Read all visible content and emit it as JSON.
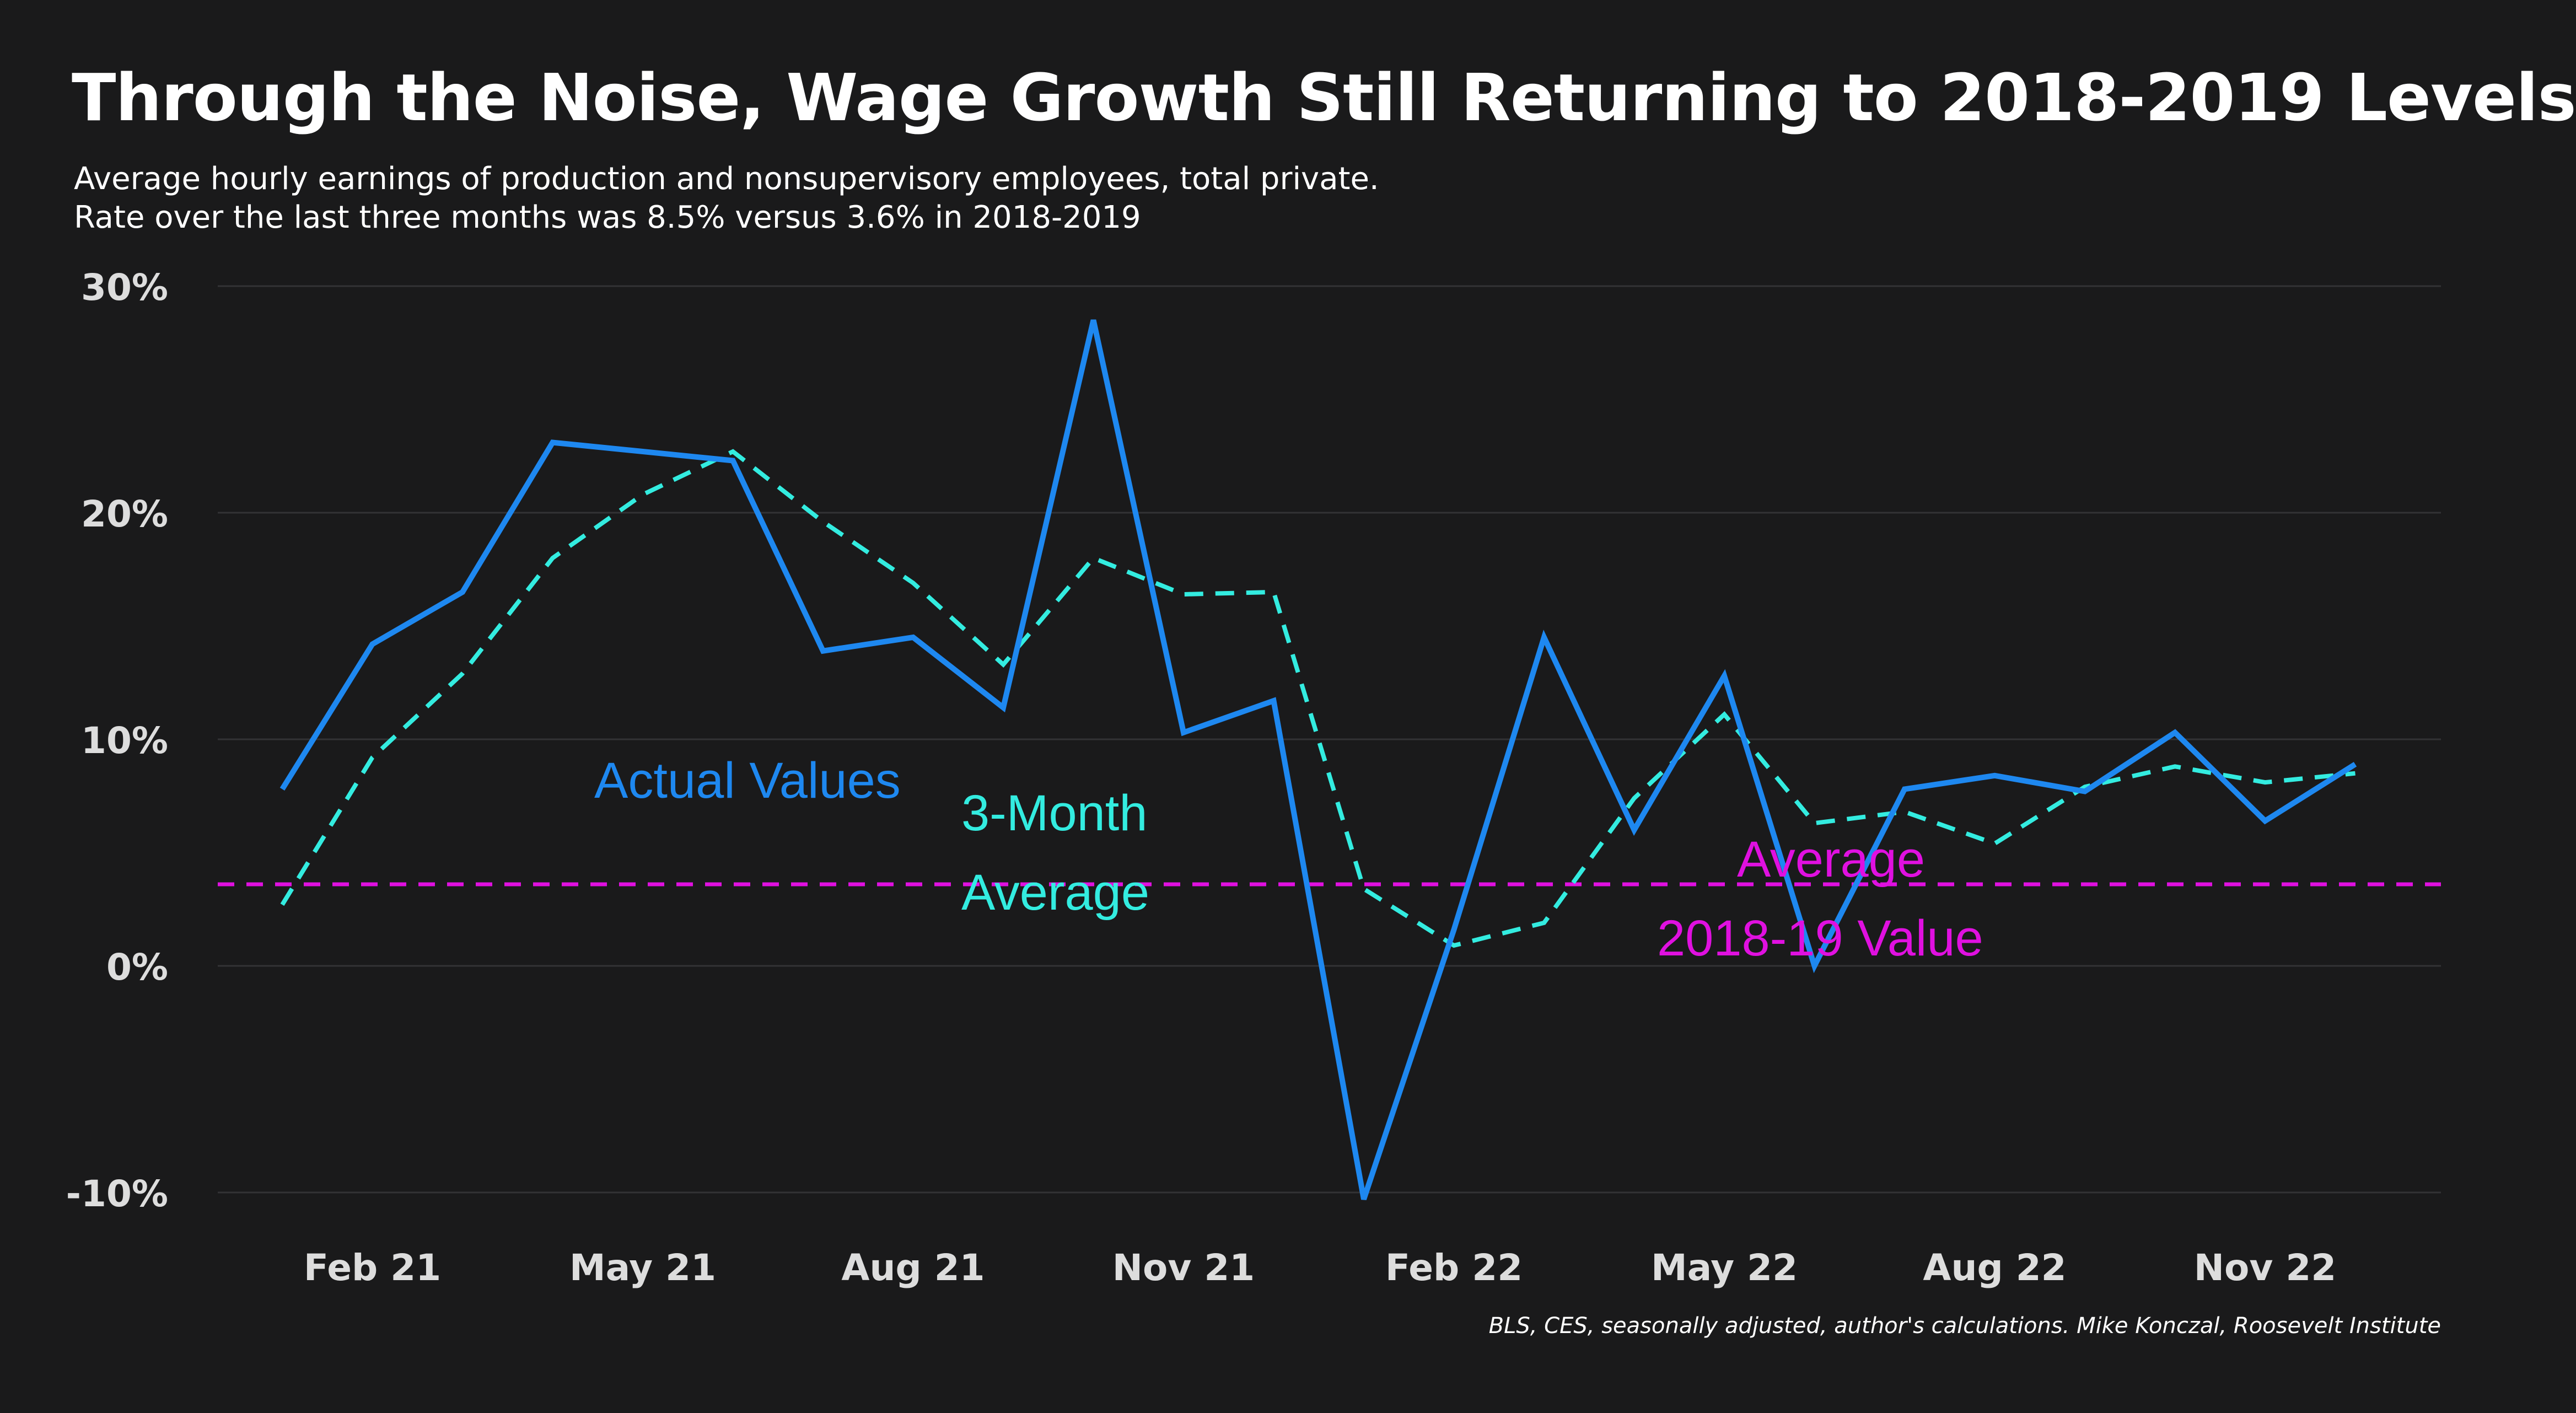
{
  "title": "Through the Noise, Wage Growth Still Returning to 2018-2019 Levels",
  "subtitle_line1": "Average hourly earnings of production and nonsupervisory employees, total private.",
  "subtitle_line2": "Rate over the last three months was 8.5% versus 3.6% in 2018-2019",
  "caption": "BLS, CES, seasonally adjusted, author's calculations. Mike Konczal, Roosevelt Institute",
  "colors": {
    "background": "#1a1a1b",
    "actual": "#1e88f0",
    "three_month": "#33ece0",
    "average_ref": "#e010e0",
    "grid": "#333335",
    "tick_text": "#dddddd"
  },
  "chart_data": {
    "type": "line",
    "title": "Through the Noise, Wage Growth Still Returning to 2018-2019 Levels",
    "ylim": [
      -10,
      30
    ],
    "y_ticks": [
      -10,
      0,
      10,
      20,
      30
    ],
    "y_tick_labels": [
      "-10%",
      "0%",
      "10%",
      "20%",
      "30%"
    ],
    "x_tick_labels": [
      "Feb 21",
      "May 21",
      "Aug 21",
      "Nov 21",
      "Feb 22",
      "May 22",
      "Aug 22",
      "Nov 22"
    ],
    "x_tick_index": [
      1,
      4,
      7,
      10,
      13,
      16,
      19,
      22
    ],
    "x": [
      "Jan 21",
      "Feb 21",
      "Mar 21",
      "Apr 21",
      "May 21",
      "Jun 21",
      "Jul 21",
      "Aug 21",
      "Sep 21",
      "Oct 21",
      "Nov 21",
      "Dec 21",
      "Jan 22",
      "Feb 22",
      "Mar 22",
      "Apr 22",
      "May 22",
      "Jun 22",
      "Jul 22",
      "Aug 22",
      "Sep 22",
      "Oct 22",
      "Nov 22",
      "Dec 22"
    ],
    "series": [
      {
        "name": "Actual Values",
        "style": "solid",
        "color": "#1e88f0",
        "values": [
          7.8,
          14.2,
          16.5,
          23.1,
          22.7,
          22.3,
          13.9,
          14.5,
          11.4,
          28.5,
          10.3,
          11.7,
          -10.3,
          1.6,
          14.5,
          6.0,
          12.8,
          0.0,
          7.8,
          8.4,
          7.7,
          10.3,
          6.4,
          8.9
        ]
      },
      {
        "name": "3-Month Average",
        "style": "dashed",
        "color": "#33ece0",
        "values": [
          2.7,
          9.2,
          12.9,
          18.0,
          20.8,
          22.7,
          19.6,
          16.9,
          13.3,
          18.0,
          16.4,
          16.5,
          3.4,
          0.9,
          1.9,
          7.4,
          11.1,
          6.3,
          6.8,
          5.4,
          7.9,
          8.8,
          8.1,
          8.5
        ]
      }
    ],
    "reference_line": {
      "label": "Average 2018-19 Value",
      "value": 3.6,
      "style": "dashed",
      "color": "#e010e0"
    },
    "annotations": [
      {
        "text": "Actual Values",
        "color": "#1e88f0"
      },
      {
        "text": "3-Month",
        "color": "#33ece0"
      },
      {
        "text": "Average",
        "color": "#33ece0"
      },
      {
        "text": "Average",
        "color": "#e010e0"
      },
      {
        "text": "2018-19 Value",
        "color": "#e010e0"
      }
    ],
    "grid": true,
    "legend": "none"
  }
}
